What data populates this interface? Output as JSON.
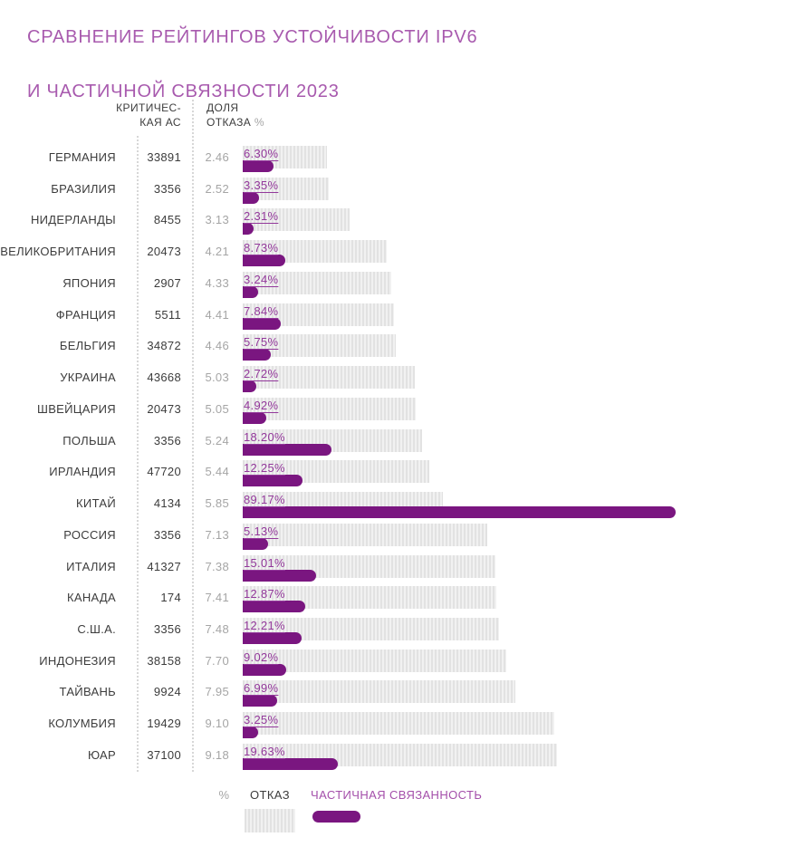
{
  "title": {
    "line1": "СРАВНЕНИЕ РЕЙТИНГОВ УСТОЙЧИВОСТИ IPV6",
    "line2": "И ЧАСТИЧНОЙ СВЯЗНОСТИ 2023"
  },
  "columns": {
    "critical_as_line1": "КРИТИЧЕС-",
    "critical_as_line2": "КАЯ АС",
    "failure_share_line1": "ДОЛЯ",
    "failure_share_line2": "ОТКАЗА",
    "failure_share_unit": "%"
  },
  "legend": {
    "unit": "%",
    "failure_label": "ОТКАЗ",
    "partial_label": "ЧАСТИЧНАЯ СВЯЗАННОСТЬ"
  },
  "colors": {
    "title_purple": "#a85aae",
    "partial_bar_purple": "#7a1680",
    "partial_label_purple": "#93399b",
    "legend_partial_purple": "#a44faa",
    "text_dark": "#3c3c3c",
    "text_gray": "#a5a5a5",
    "hatch_gray": "#e2e2e2"
  },
  "chart_data": {
    "type": "bar",
    "orientation": "horizontal",
    "title": "СРАВНЕНИЕ РЕЙТИНГОВ УСТОЙЧИВОСТИ IPV6 И ЧАСТИЧНОЙ СВЯЗНОСТИ 2023",
    "categories": [
      "ГЕРМАНИЯ",
      "БРАЗИЛИЯ",
      "НИДЕРЛАНДЫ",
      "ВЕЛИКОБРИТАНИЯ",
      "ЯПОНИЯ",
      "ФРАНЦИЯ",
      "БЕЛЬГИЯ",
      "УКРАИНА",
      "ШВЕЙЦАРИЯ",
      "ПОЛЬША",
      "ИРЛАНДИЯ",
      "КИТАЙ",
      "РОССИЯ",
      "ИТАЛИЯ",
      "КАНАДА",
      "С.Ш.А.",
      "ИНДОНЕЗИЯ",
      "ТАЙВАНЬ",
      "КОЛУМБИЯ",
      "ЮАР"
    ],
    "critical_as": [
      33891,
      3356,
      8455,
      20473,
      2907,
      5511,
      34872,
      43668,
      20473,
      3356,
      47720,
      4134,
      3356,
      41327,
      174,
      3356,
      38158,
      9924,
      19429,
      37100
    ],
    "series": [
      {
        "name": "ОТКАЗ",
        "unit": "%",
        "style": "hatched-gray",
        "values": [
          2.46,
          2.52,
          3.13,
          4.21,
          4.33,
          4.41,
          4.46,
          5.03,
          5.05,
          5.24,
          5.44,
          5.85,
          7.13,
          7.38,
          7.41,
          7.48,
          7.7,
          7.95,
          9.1,
          9.18
        ]
      },
      {
        "name": "ЧАСТИЧНАЯ СВЯЗАННОСТЬ",
        "unit": "%",
        "style": "solid-purple",
        "values": [
          6.3,
          3.35,
          2.31,
          8.73,
          3.24,
          7.84,
          5.75,
          2.72,
          4.92,
          18.2,
          12.25,
          89.17,
          5.13,
          15.01,
          12.87,
          12.21,
          9.02,
          6.99,
          3.25,
          19.63
        ]
      }
    ],
    "value_labels_shown_for": "ЧАСТИЧНАЯ СВЯЗАННОСТЬ",
    "legend_position": "bottom",
    "grid": false,
    "axis_ticks": false
  }
}
